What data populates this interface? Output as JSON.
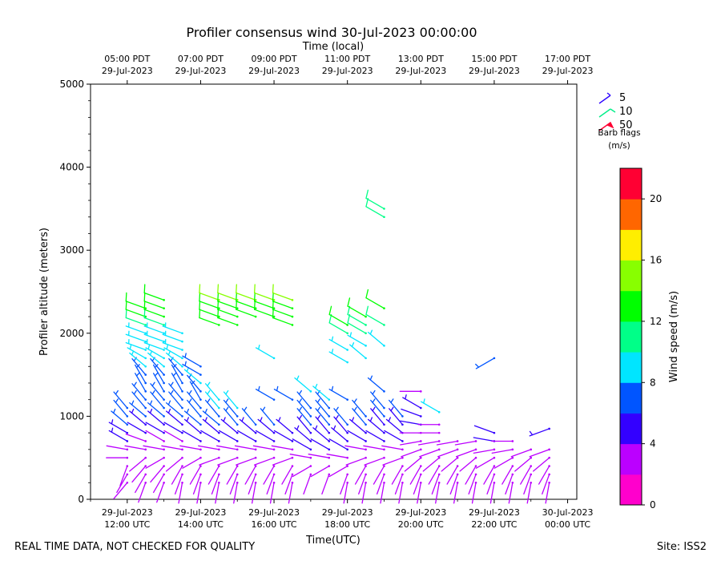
{
  "chart_data": {
    "type": "wind-barb",
    "title": "Profiler consensus wind 30-Jul-2023 00:00:00",
    "top_axis_title": "Time (local)",
    "xlabel": "Time(UTC)",
    "ylabel": "Profiler altitude (meters)",
    "xlim_utc_hours": [
      11.0,
      24.25
    ],
    "ylim": [
      0,
      5000
    ],
    "y_ticks": [
      0,
      1000,
      2000,
      3000,
      4000,
      5000
    ],
    "bottom_ticks": [
      {
        "hour": 12,
        "line1": "29-Jul-2023",
        "line2": "12:00 UTC"
      },
      {
        "hour": 14,
        "line1": "29-Jul-2023",
        "line2": "14:00 UTC"
      },
      {
        "hour": 16,
        "line1": "29-Jul-2023",
        "line2": "16:00 UTC"
      },
      {
        "hour": 18,
        "line1": "29-Jul-2023",
        "line2": "18:00 UTC"
      },
      {
        "hour": 20,
        "line1": "29-Jul-2023",
        "line2": "20:00 UTC"
      },
      {
        "hour": 22,
        "line1": "29-Jul-2023",
        "line2": "22:00 UTC"
      },
      {
        "hour": 24,
        "line1": "30-Jul-2023",
        "line2": "00:00 UTC"
      }
    ],
    "top_ticks": [
      {
        "hour": 12,
        "line1": "05:00 PDT",
        "line2": "29-Jul-2023"
      },
      {
        "hour": 14,
        "line1": "07:00 PDT",
        "line2": "29-Jul-2023"
      },
      {
        "hour": 16,
        "line1": "09:00 PDT",
        "line2": "29-Jul-2023"
      },
      {
        "hour": 18,
        "line1": "11:00 PDT",
        "line2": "29-Jul-2023"
      },
      {
        "hour": 20,
        "line1": "13:00 PDT",
        "line2": "29-Jul-2023"
      },
      {
        "hour": 22,
        "line1": "15:00 PDT",
        "line2": "29-Jul-2023"
      },
      {
        "hour": 24,
        "line1": "17:00 PDT",
        "line2": "29-Jul-2023"
      }
    ],
    "barb_legend": {
      "entries": [
        "5",
        "10",
        "50"
      ],
      "title": "Barb flags",
      "units": "(m/s)"
    },
    "colorbar": {
      "label": "Wind speed (m/s)",
      "min": 0,
      "max": 22,
      "step": 2,
      "ticks": [
        0,
        4,
        8,
        12,
        16,
        20
      ],
      "colors": [
        "#ff00cc",
        "#bb00ff",
        "#3300ff",
        "#0055ff",
        "#00e5ff",
        "#00ff88",
        "#00ff00",
        "#88ff00",
        "#ffee00",
        "#ff6600",
        "#ff0033"
      ]
    },
    "footer_left": "REAL TIME DATA, NOT CHECKED FOR QUALITY",
    "footer_right": "Site: ISS2",
    "series": [
      {
        "time": 12.0,
        "heights": [
          200,
          300,
          400,
          500,
          600,
          700,
          800,
          900,
          1000,
          1100
        ],
        "speeds": [
          2,
          2,
          2,
          3,
          3,
          5,
          5,
          6,
          6,
          6
        ],
        "dirs": [
          220,
          210,
          200,
          270,
          280,
          300,
          300,
          310,
          320,
          320
        ]
      },
      {
        "time": 12.5,
        "heights": [
          200,
          300,
          400,
          500,
          600,
          700,
          800,
          900,
          1000,
          1100,
          1200,
          1300,
          1400,
          1500,
          1600,
          1700,
          1800,
          1900,
          2000,
          2100,
          2200,
          2300
        ],
        "speeds": [
          2,
          2,
          2,
          2,
          3,
          3,
          4,
          5,
          6,
          6,
          6,
          6,
          7,
          7,
          8,
          8,
          8,
          8,
          9,
          10,
          12,
          13
        ],
        "dirs": [
          200,
          210,
          220,
          230,
          280,
          290,
          300,
          310,
          310,
          320,
          320,
          330,
          330,
          320,
          310,
          300,
          290,
          290,
          290,
          290,
          290,
          290
        ]
      },
      {
        "time": 13.0,
        "heights": [
          200,
          300,
          400,
          500,
          600,
          700,
          800,
          900,
          1000,
          1100,
          1200,
          1300,
          1400,
          1500,
          1600,
          1700,
          1800,
          1900,
          2000,
          2100,
          2200,
          2300,
          2400
        ],
        "speeds": [
          2,
          2,
          2,
          2,
          3,
          3,
          4,
          5,
          6,
          6,
          6,
          7,
          7,
          7,
          8,
          8,
          8,
          9,
          9,
          10,
          12,
          13,
          13
        ],
        "dirs": [
          200,
          210,
          220,
          240,
          280,
          300,
          300,
          310,
          310,
          320,
          320,
          330,
          330,
          320,
          310,
          300,
          290,
          290,
          290,
          290,
          290,
          290,
          290
        ]
      },
      {
        "time": 13.5,
        "heights": [
          200,
          300,
          400,
          500,
          600,
          700,
          800,
          900,
          1000,
          1100,
          1200,
          1300,
          1400,
          1500,
          1600,
          1700,
          1800,
          1900,
          2000
        ],
        "speeds": [
          2,
          2,
          2,
          2,
          3,
          3,
          4,
          5,
          6,
          6,
          6,
          7,
          7,
          7,
          8,
          8,
          8,
          9,
          9
        ],
        "dirs": [
          190,
          200,
          210,
          230,
          280,
          300,
          300,
          310,
          310,
          320,
          320,
          330,
          330,
          320,
          310,
          300,
          290,
          290,
          290
        ]
      },
      {
        "time": 14.0,
        "heights": [
          200,
          300,
          400,
          500,
          600,
          700,
          800,
          900,
          1000,
          1100,
          1200,
          1300,
          1400,
          1500,
          1600
        ],
        "speeds": [
          2,
          2,
          2,
          3,
          3,
          4,
          5,
          6,
          6,
          6,
          7,
          7,
          8,
          7,
          6
        ],
        "dirs": [
          190,
          200,
          210,
          240,
          280,
          300,
          310,
          310,
          320,
          320,
          330,
          320,
          310,
          300,
          300
        ]
      },
      {
        "time": 14.5,
        "heights": [
          200,
          300,
          400,
          500,
          600,
          700,
          800,
          900,
          1000,
          1100,
          1200,
          2100,
          2200,
          2300,
          2400
        ],
        "speeds": [
          2,
          2,
          2,
          3,
          3,
          4,
          5,
          6,
          7,
          8,
          8,
          12,
          13,
          13,
          14
        ],
        "dirs": [
          190,
          200,
          210,
          250,
          280,
          300,
          310,
          310,
          320,
          320,
          320,
          290,
          290,
          290,
          290
        ]
      },
      {
        "time": 15.0,
        "heights": [
          200,
          300,
          400,
          500,
          600,
          700,
          800,
          900,
          1000,
          1100,
          2100,
          2200,
          2300,
          2400
        ],
        "speeds": [
          2,
          2,
          2,
          3,
          3,
          4,
          5,
          6,
          7,
          8,
          12,
          13,
          13,
          14
        ],
        "dirs": [
          190,
          200,
          210,
          250,
          280,
          300,
          310,
          320,
          320,
          320,
          290,
          290,
          290,
          290
        ]
      },
      {
        "time": 15.5,
        "heights": [
          200,
          300,
          400,
          500,
          600,
          700,
          800,
          900,
          2200,
          2300,
          2400
        ],
        "speeds": [
          2,
          2,
          2,
          3,
          3,
          4,
          5,
          6,
          12,
          13,
          14
        ],
        "dirs": [
          190,
          200,
          210,
          250,
          280,
          300,
          310,
          320,
          290,
          290,
          290
        ]
      },
      {
        "time": 16.0,
        "heights": [
          200,
          300,
          400,
          500,
          600,
          700,
          800,
          900,
          1200,
          1700,
          2200,
          2300,
          2400
        ],
        "speeds": [
          2,
          2,
          2,
          3,
          3,
          4,
          5,
          6,
          6,
          9,
          12,
          13,
          14
        ],
        "dirs": [
          190,
          200,
          210,
          250,
          280,
          300,
          310,
          320,
          300,
          300,
          290,
          290,
          290
        ]
      },
      {
        "time": 16.5,
        "heights": [
          200,
          300,
          400,
          500,
          600,
          700,
          800,
          1200,
          2100,
          2200,
          2300,
          2400
        ],
        "speeds": [
          2,
          2,
          2,
          3,
          3,
          4,
          5,
          6,
          12,
          13,
          13,
          14
        ],
        "dirs": [
          190,
          200,
          210,
          250,
          280,
          300,
          310,
          300,
          290,
          290,
          290,
          290
        ]
      },
      {
        "time": 17.0,
        "heights": [
          300,
          400,
          500,
          600,
          700,
          800,
          900,
          1000,
          1100,
          1300
        ],
        "speeds": [
          2,
          3,
          3,
          4,
          5,
          5,
          6,
          6,
          7,
          8
        ],
        "dirs": [
          200,
          240,
          280,
          300,
          310,
          320,
          320,
          320,
          320,
          310
        ]
      },
      {
        "time": 17.5,
        "heights": [
          300,
          400,
          500,
          600,
          700,
          800,
          900,
          1000,
          1100,
          1200
        ],
        "speeds": [
          2,
          3,
          3,
          4,
          5,
          5,
          6,
          6,
          7,
          8
        ],
        "dirs": [
          200,
          240,
          280,
          300,
          310,
          320,
          320,
          320,
          320,
          310
        ]
      },
      {
        "time": 18.0,
        "heights": [
          200,
          300,
          400,
          500,
          600,
          700,
          800,
          900,
          1200,
          1650,
          1800,
          2000,
          2100
        ],
        "speeds": [
          2,
          2,
          3,
          3,
          4,
          5,
          5,
          6,
          6,
          9,
          9,
          11,
          12
        ],
        "dirs": [
          190,
          200,
          240,
          280,
          300,
          310,
          320,
          320,
          300,
          300,
          300,
          300,
          300
        ]
      },
      {
        "time": 18.5,
        "heights": [
          200,
          300,
          400,
          500,
          600,
          700,
          800,
          900,
          1000,
          1700,
          1850,
          2000,
          2100,
          2200
        ],
        "speeds": [
          2,
          2,
          2,
          3,
          3,
          4,
          5,
          6,
          6,
          8,
          9,
          10,
          11,
          12
        ],
        "dirs": [
          190,
          200,
          210,
          250,
          280,
          300,
          310,
          320,
          320,
          310,
          300,
          300,
          300,
          300
        ]
      },
      {
        "time": 19.0,
        "heights": [
          200,
          300,
          400,
          500,
          600,
          700,
          800,
          900,
          1000,
          1100,
          1300,
          1850,
          2100,
          2300,
          3400,
          3500
        ],
        "speeds": [
          2,
          2,
          2,
          3,
          3,
          4,
          5,
          5,
          6,
          6,
          7,
          8,
          10,
          12,
          11,
          11
        ],
        "dirs": [
          190,
          200,
          210,
          250,
          280,
          300,
          310,
          320,
          320,
          320,
          310,
          310,
          300,
          300,
          300,
          300
        ]
      },
      {
        "time": 19.5,
        "heights": [
          200,
          300,
          400,
          500,
          600,
          700,
          800,
          900,
          1000
        ],
        "speeds": [
          2,
          2,
          2,
          3,
          3,
          4,
          5,
          5,
          6
        ],
        "dirs": [
          190,
          200,
          210,
          250,
          280,
          300,
          310,
          320,
          320
        ]
      },
      {
        "time": 20.0,
        "heights": [
          200,
          300,
          400,
          500,
          600,
          700,
          800,
          900,
          1000,
          1100,
          1300
        ],
        "speeds": [
          2,
          2,
          2,
          2,
          3,
          3,
          3,
          4,
          4,
          5,
          3
        ],
        "dirs": [
          190,
          200,
          210,
          230,
          250,
          260,
          270,
          280,
          290,
          300,
          270
        ]
      },
      {
        "time": 20.5,
        "heights": [
          200,
          300,
          400,
          500,
          600,
          700,
          800,
          900,
          1050
        ],
        "speeds": [
          2,
          2,
          2,
          2,
          3,
          3,
          3,
          3,
          8
        ],
        "dirs": [
          190,
          200,
          210,
          230,
          250,
          260,
          270,
          270,
          300
        ]
      },
      {
        "time": 21.0,
        "heights": [
          200,
          300,
          400,
          500,
          600,
          700
        ],
        "speeds": [
          2,
          2,
          2,
          2,
          3,
          3
        ],
        "dirs": [
          190,
          200,
          210,
          230,
          250,
          260
        ]
      },
      {
        "time": 21.5,
        "heights": [
          200,
          300,
          400,
          500,
          600,
          700
        ],
        "speeds": [
          2,
          2,
          2,
          2,
          3,
          3
        ],
        "dirs": [
          190,
          200,
          210,
          230,
          250,
          260
        ]
      },
      {
        "time": 22.0,
        "heights": [
          200,
          300,
          400,
          500,
          600,
          700,
          800,
          1700
        ],
        "speeds": [
          2,
          2,
          2,
          3,
          3,
          4,
          4,
          6
        ],
        "dirs": [
          190,
          200,
          210,
          240,
          260,
          280,
          290,
          240
        ]
      },
      {
        "time": 22.5,
        "heights": [
          200,
          300,
          400,
          500,
          600,
          700
        ],
        "speeds": [
          2,
          2,
          2,
          3,
          3,
          3
        ],
        "dirs": [
          190,
          200,
          210,
          240,
          260,
          270
        ]
      },
      {
        "time": 23.0,
        "heights": [
          200,
          300,
          400,
          500,
          600
        ],
        "speeds": [
          2,
          2,
          2,
          2,
          3
        ],
        "dirs": [
          190,
          200,
          210,
          230,
          250
        ]
      },
      {
        "time": 23.5,
        "heights": [
          200,
          300,
          400,
          500,
          600,
          850
        ],
        "speeds": [
          2,
          2,
          2,
          2,
          3,
          5
        ],
        "dirs": [
          190,
          200,
          210,
          230,
          250,
          250
        ]
      }
    ]
  }
}
